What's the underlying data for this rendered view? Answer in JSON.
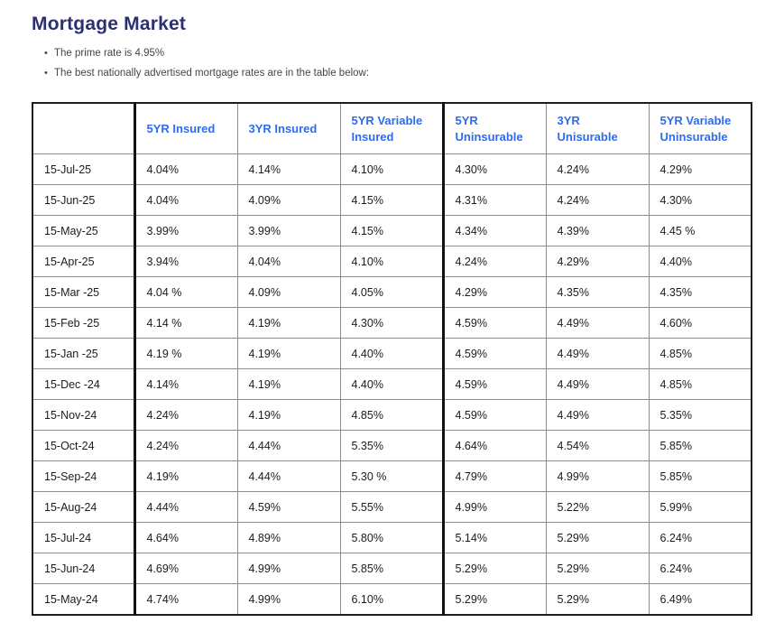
{
  "page": {
    "title": "Mortgage Market",
    "bullets": [
      "The prime rate is 4.95%",
      "The best nationally advertised mortgage rates are in the table below:"
    ]
  },
  "colors": {
    "title_navy": "#2b3170",
    "header_blue": "#2b6cf0",
    "body_text": "#1c1c1e",
    "grid_gray": "#8d8d8d",
    "heavy_border": "#121212"
  },
  "table": {
    "columns": [
      "",
      "5YR Insured",
      "3YR Insured",
      "5YR Variable Insured",
      "5YR Uninsurable",
      "3YR Unisurable",
      "5YR Variable Uninsurable"
    ],
    "rows": [
      {
        "date": "15-Jul-25",
        "values": [
          "4.04%",
          "4.14%",
          "4.10%",
          "4.30%",
          "4.24%",
          "4.29%"
        ]
      },
      {
        "date": "15-Jun-25",
        "values": [
          "4.04%",
          "4.09%",
          "4.15%",
          "4.31%",
          "4.24%",
          "4.30%"
        ]
      },
      {
        "date": "15-May-25",
        "values": [
          "3.99%",
          "3.99%",
          "4.15%",
          "4.34%",
          "4.39%",
          "4.45 %"
        ]
      },
      {
        "date": "15-Apr-25",
        "values": [
          "3.94%",
          "4.04%",
          "4.10%",
          "4.24%",
          "4.29%",
          "4.40%"
        ]
      },
      {
        "date": "15-Mar -25",
        "values": [
          "4.04 %",
          "4.09%",
          "4.05%",
          "4.29%",
          "4.35%",
          "4.35%"
        ]
      },
      {
        "date": "15-Feb -25",
        "values": [
          "4.14 %",
          "4.19%",
          "4.30%",
          "4.59%",
          "4.49%",
          "4.60%"
        ]
      },
      {
        "date": "15-Jan -25",
        "values": [
          "4.19 %",
          "4.19%",
          "4.40%",
          "4.59%",
          "4.49%",
          "4.85%"
        ]
      },
      {
        "date": "15-Dec -24",
        "values": [
          "4.14%",
          "4.19%",
          "4.40%",
          "4.59%",
          "4.49%",
          "4.85%"
        ]
      },
      {
        "date": "15-Nov-24",
        "values": [
          "4.24%",
          "4.19%",
          "4.85%",
          "4.59%",
          "4.49%",
          "5.35%"
        ]
      },
      {
        "date": "15-Oct-24",
        "values": [
          "4.24%",
          "4.44%",
          "5.35%",
          "4.64%",
          "4.54%",
          "5.85%"
        ]
      },
      {
        "date": "15-Sep-24",
        "values": [
          "4.19%",
          "4.44%",
          "5.30 %",
          "4.79%",
          "4.99%",
          "5.85%"
        ]
      },
      {
        "date": "15-Aug-24",
        "values": [
          "4.44%",
          "4.59%",
          "5.55%",
          "4.99%",
          "5.22%",
          "5.99%"
        ]
      },
      {
        "date": "15-Jul-24",
        "values": [
          "4.64%",
          "4.89%",
          "5.80%",
          "5.14%",
          "5.29%",
          "6.24%"
        ]
      },
      {
        "date": "15-Jun-24",
        "values": [
          "4.69%",
          "4.99%",
          "5.85%",
          "5.29%",
          "5.29%",
          "6.24%"
        ]
      },
      {
        "date": "15-May-24",
        "values": [
          "4.74%",
          "4.99%",
          "6.10%",
          "5.29%",
          "5.29%",
          "6.49%"
        ]
      }
    ]
  }
}
